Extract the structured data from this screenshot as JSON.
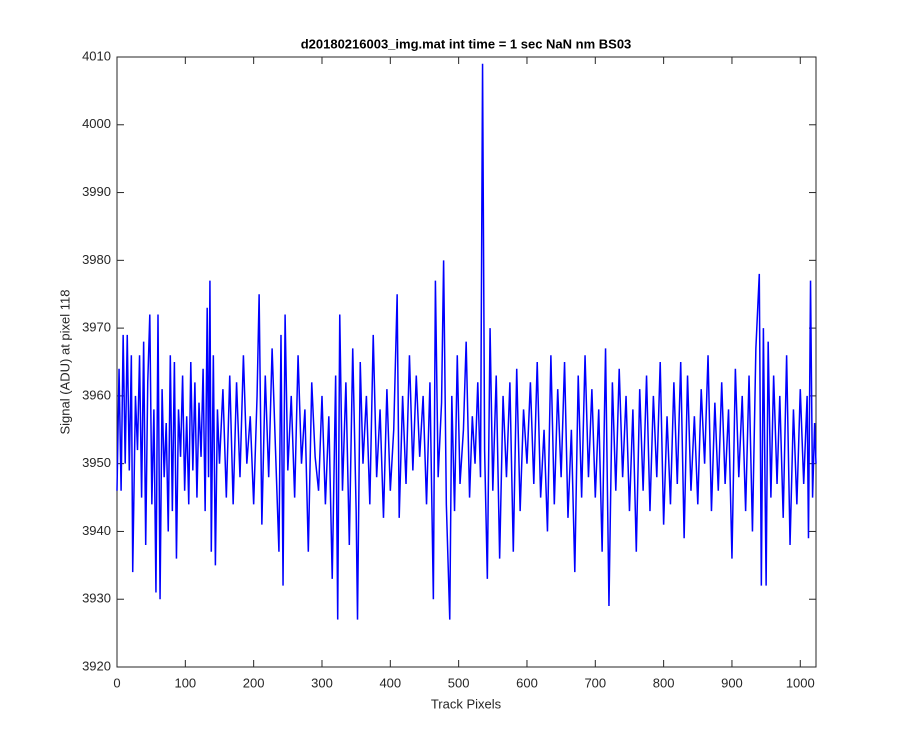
{
  "chart_data": {
    "type": "line",
    "title": "d20180216003_img.mat int time = 1 sec  NaN nm BS03",
    "x_label": "Track Pixels",
    "y_label": "Signal (ADU) at pixel 118",
    "xlim": [
      0,
      1023
    ],
    "ylim": [
      3920,
      4010
    ],
    "xticks": [
      0,
      100,
      200,
      300,
      400,
      500,
      600,
      700,
      800,
      900,
      1000
    ],
    "yticks": [
      3920,
      3930,
      3940,
      3950,
      3960,
      3970,
      3980,
      3990,
      4000,
      4010
    ],
    "color": "#0000ff",
    "x": [
      0,
      3,
      6,
      9,
      12,
      15,
      18,
      21,
      23,
      27,
      30,
      33,
      36,
      39,
      42,
      45,
      48,
      51,
      54,
      57,
      60,
      63,
      66,
      69,
      72,
      75,
      78,
      81,
      84,
      87,
      90,
      93,
      96,
      99,
      102,
      105,
      108,
      111,
      114,
      117,
      120,
      123,
      126,
      129,
      132,
      134,
      136,
      138,
      141,
      144,
      147,
      150,
      155,
      160,
      165,
      170,
      175,
      180,
      185,
      190,
      195,
      200,
      205,
      208,
      212,
      217,
      222,
      227,
      232,
      237,
      240,
      243,
      246,
      250,
      255,
      260,
      265,
      270,
      275,
      280,
      285,
      290,
      295,
      300,
      305,
      310,
      315,
      320,
      323,
      326,
      330,
      335,
      340,
      345,
      350,
      352,
      356,
      360,
      365,
      370,
      375,
      380,
      385,
      390,
      395,
      400,
      405,
      410,
      413,
      418,
      423,
      428,
      433,
      438,
      443,
      448,
      453,
      458,
      463,
      466,
      470,
      475,
      478,
      482,
      487,
      490,
      494,
      498,
      502,
      507,
      511,
      516,
      520,
      524,
      528,
      532,
      535,
      538,
      542,
      546,
      550,
      555,
      560,
      565,
      570,
      575,
      580,
      585,
      590,
      595,
      600,
      605,
      610,
      615,
      620,
      625,
      630,
      635,
      640,
      645,
      650,
      655,
      660,
      665,
      670,
      675,
      680,
      685,
      690,
      695,
      700,
      705,
      710,
      715,
      720,
      725,
      730,
      735,
      740,
      745,
      750,
      755,
      760,
      765,
      770,
      775,
      780,
      785,
      790,
      795,
      800,
      805,
      810,
      815,
      820,
      825,
      830,
      835,
      840,
      845,
      850,
      855,
      860,
      865,
      870,
      875,
      880,
      885,
      890,
      895,
      900,
      905,
      910,
      915,
      920,
      925,
      930,
      935,
      940,
      943,
      946,
      950,
      953,
      957,
      961,
      966,
      970,
      975,
      980,
      985,
      990,
      995,
      1000,
      1005,
      1010,
      1012,
      1015,
      1018,
      1021,
      1023
    ],
    "values": [
      3946,
      3964,
      3946,
      3969,
      3950,
      3969,
      3949,
      3966,
      3934,
      3960,
      3952,
      3966,
      3945,
      3968,
      3938,
      3962,
      3972,
      3944,
      3958,
      3931,
      3972,
      3930,
      3961,
      3948,
      3956,
      3940,
      3966,
      3943,
      3965,
      3936,
      3958,
      3951,
      3963,
      3946,
      3957,
      3944,
      3965,
      3949,
      3962,
      3945,
      3959,
      3951,
      3964,
      3943,
      3973,
      3948,
      3977,
      3937,
      3966,
      3935,
      3958,
      3950,
      3961,
      3945,
      3963,
      3944,
      3962,
      3948,
      3966,
      3950,
      3957,
      3944,
      3960,
      3975,
      3941,
      3963,
      3948,
      3967,
      3952,
      3937,
      3969,
      3932,
      3972,
      3949,
      3960,
      3945,
      3966,
      3950,
      3958,
      3937,
      3962,
      3951,
      3946,
      3960,
      3944,
      3957,
      3933,
      3963,
      3927,
      3972,
      3946,
      3962,
      3938,
      3967,
      3943,
      3927,
      3965,
      3950,
      3960,
      3944,
      3969,
      3948,
      3958,
      3942,
      3961,
      3946,
      3955,
      3975,
      3942,
      3960,
      3947,
      3966,
      3949,
      3963,
      3951,
      3960,
      3944,
      3962,
      3930,
      3977,
      3948,
      3959,
      3980,
      3944,
      3927,
      3960,
      3943,
      3966,
      3947,
      3955,
      3968,
      3945,
      3957,
      3950,
      3962,
      3948,
      4009,
      3952,
      3933,
      3970,
      3946,
      3963,
      3936,
      3960,
      3948,
      3962,
      3937,
      3964,
      3943,
      3958,
      3950,
      3962,
      3947,
      3965,
      3945,
      3955,
      3940,
      3966,
      3944,
      3961,
      3948,
      3965,
      3942,
      3955,
      3934,
      3963,
      3945,
      3966,
      3948,
      3961,
      3945,
      3958,
      3937,
      3967,
      3929,
      3962,
      3946,
      3964,
      3948,
      3960,
      3943,
      3958,
      3937,
      3961,
      3946,
      3963,
      3943,
      3960,
      3948,
      3965,
      3941,
      3957,
      3944,
      3962,
      3947,
      3965,
      3939,
      3963,
      3946,
      3957,
      3944,
      3961,
      3950,
      3966,
      3943,
      3959,
      3946,
      3962,
      3947,
      3958,
      3936,
      3964,
      3948,
      3960,
      3943,
      3963,
      3940,
      3967,
      3978,
      3932,
      3970,
      3932,
      3968,
      3945,
      3963,
      3947,
      3960,
      3942,
      3966,
      3938,
      3958,
      3944,
      3961,
      3947,
      3960,
      3939,
      3977,
      3945,
      3956,
      3950
    ]
  }
}
